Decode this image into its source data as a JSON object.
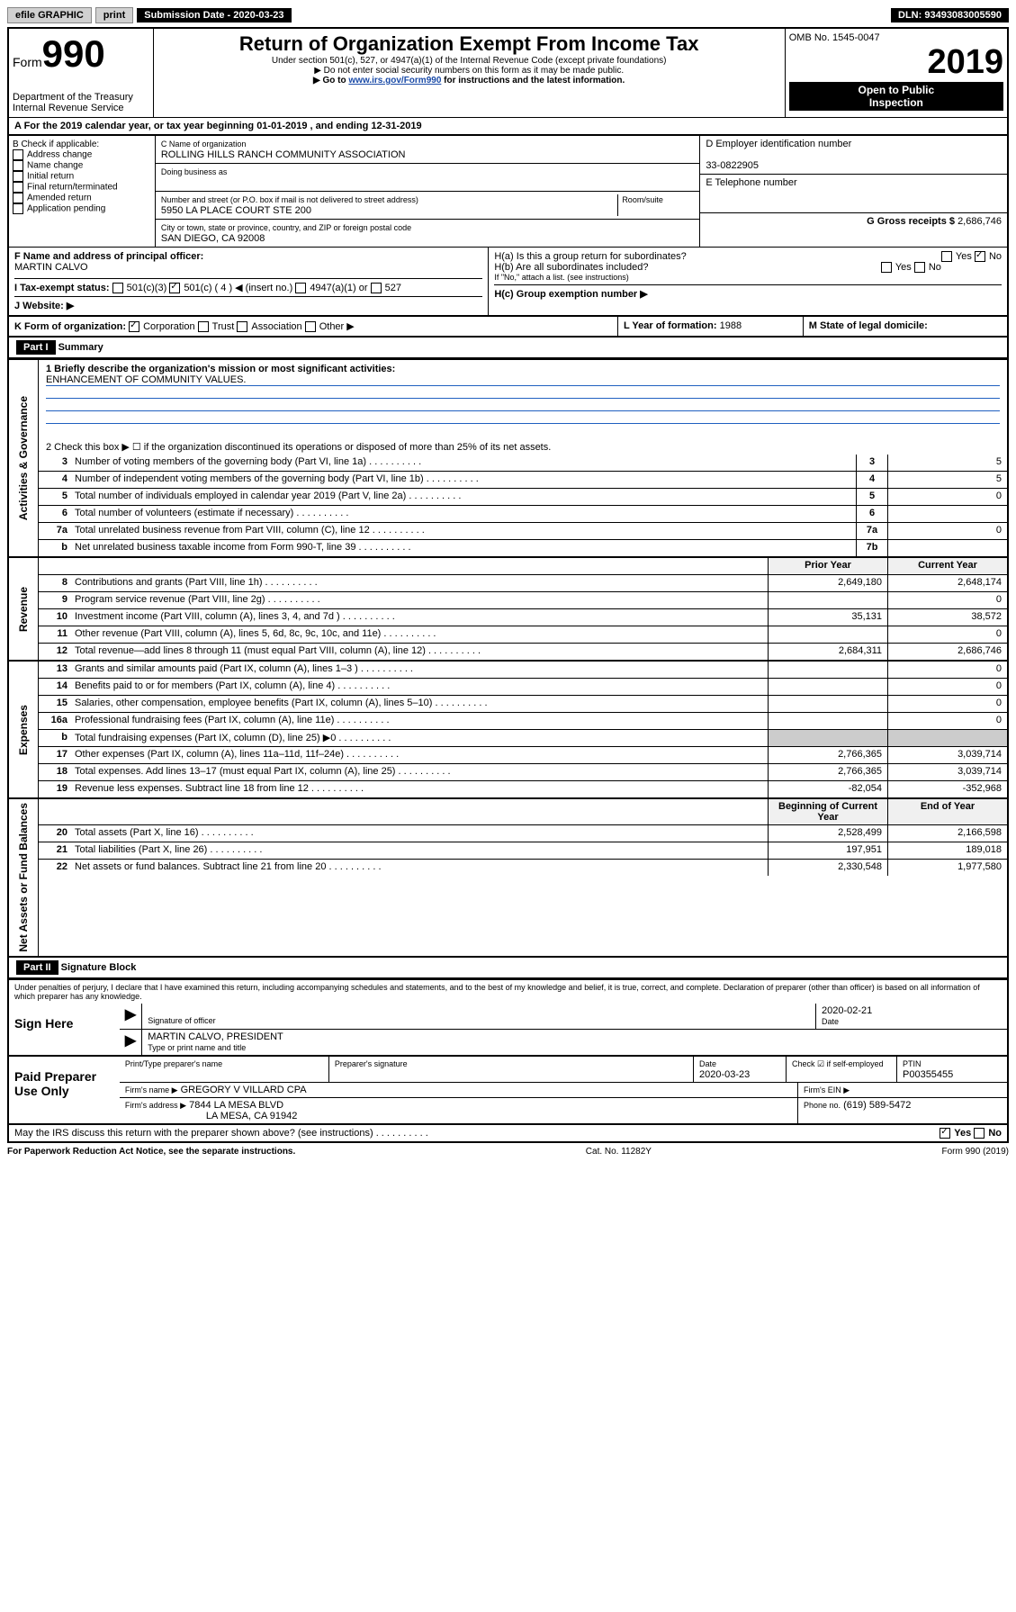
{
  "toolbar": {
    "efile": "efile GRAPHIC",
    "print": "print",
    "sub_label": "Submission Date - 2020-03-23",
    "dln": "DLN: 93493083005590"
  },
  "header": {
    "form_word": "Form",
    "form_no": "990",
    "dept": "Department of the Treasury",
    "irs": "Internal Revenue Service",
    "title": "Return of Organization Exempt From Income Tax",
    "sub1": "Under section 501(c), 527, or 4947(a)(1) of the Internal Revenue Code (except private foundations)",
    "sub2": "▶ Do not enter social security numbers on this form as it may be made public.",
    "sub3_a": "▶ Go to ",
    "sub3_link": "www.irs.gov/Form990",
    "sub3_b": " for instructions and the latest information.",
    "omb": "OMB No. 1545-0047",
    "year": "2019",
    "open": "Open to Public",
    "inspection": "Inspection"
  },
  "section_a": "A For the 2019 calendar year, or tax year beginning 01-01-2019     , and ending 12-31-2019",
  "block_b": {
    "label": "B Check if applicable:",
    "items": [
      "Address change",
      "Name change",
      "Initial return",
      "Final return/terminated",
      "Amended return",
      "Application pending"
    ]
  },
  "block_c": {
    "name_label": "C Name of organization",
    "name": "ROLLING HILLS RANCH COMMUNITY ASSOCIATION",
    "dba_label": "Doing business as",
    "addr_label": "Number and street (or P.O. box if mail is not delivered to street address)",
    "room_label": "Room/suite",
    "addr": "5950 LA PLACE COURT STE 200",
    "city_label": "City or town, state or province, country, and ZIP or foreign postal code",
    "city": "SAN DIEGO, CA  92008"
  },
  "block_d": {
    "label": "D Employer identification number",
    "val": "33-0822905"
  },
  "block_e": {
    "label": "E Telephone number"
  },
  "block_g": {
    "label": "G Gross receipts $",
    "val": "2,686,746"
  },
  "block_f": {
    "label": "F  Name and address of principal officer:",
    "name": "MARTIN CALVO"
  },
  "block_h": {
    "a": "H(a)  Is this a group return for subordinates?",
    "b": "H(b)  Are all subordinates included?",
    "b_note": "If \"No,\" attach a list. (see instructions)",
    "c": "H(c)  Group exemption number ▶",
    "yes": "Yes",
    "no": "No"
  },
  "block_i": {
    "label": "I   Tax-exempt status:",
    "opts": [
      "501(c)(3)",
      "501(c) ( 4 ) ◀ (insert no.)",
      "4947(a)(1) or",
      "527"
    ]
  },
  "block_j": "J   Website: ▶",
  "block_k": {
    "label": "K Form of organization:",
    "opts": [
      "Corporation",
      "Trust",
      "Association",
      "Other ▶"
    ]
  },
  "block_l": {
    "label": "L Year of formation:",
    "val": "1988"
  },
  "block_m": "M State of legal domicile:",
  "part1": {
    "header": "Part I",
    "title": "Summary",
    "l1": "1  Briefly describe the organization's mission or most significant activities:",
    "l1v": "ENHANCEMENT OF COMMUNITY VALUES.",
    "l2": "2   Check this box ▶ ☐  if the organization discontinued its operations or disposed of more than 25% of its net assets.",
    "rows_a": [
      {
        "n": "3",
        "d": "Number of voting members of the governing body (Part VI, line 1a)",
        "b": "3",
        "v": "5"
      },
      {
        "n": "4",
        "d": "Number of independent voting members of the governing body (Part VI, line 1b)",
        "b": "4",
        "v": "5"
      },
      {
        "n": "5",
        "d": "Total number of individuals employed in calendar year 2019 (Part V, line 2a)",
        "b": "5",
        "v": "0"
      },
      {
        "n": "6",
        "d": "Total number of volunteers (estimate if necessary)",
        "b": "6",
        "v": ""
      },
      {
        "n": "7a",
        "d": "Total unrelated business revenue from Part VIII, column (C), line 12",
        "b": "7a",
        "v": "0"
      },
      {
        "n": "b",
        "d": "Net unrelated business taxable income from Form 990-T, line 39",
        "b": "7b",
        "v": ""
      }
    ],
    "col_prior": "Prior Year",
    "col_current": "Current Year",
    "rows_r": [
      {
        "n": "8",
        "d": "Contributions and grants (Part VIII, line 1h)",
        "p": "2,649,180",
        "c": "2,648,174"
      },
      {
        "n": "9",
        "d": "Program service revenue (Part VIII, line 2g)",
        "p": "",
        "c": "0"
      },
      {
        "n": "10",
        "d": "Investment income (Part VIII, column (A), lines 3, 4, and 7d )",
        "p": "35,131",
        "c": "38,572"
      },
      {
        "n": "11",
        "d": "Other revenue (Part VIII, column (A), lines 5, 6d, 8c, 9c, 10c, and 11e)",
        "p": "",
        "c": "0"
      },
      {
        "n": "12",
        "d": "Total revenue—add lines 8 through 11 (must equal Part VIII, column (A), line 12)",
        "p": "2,684,311",
        "c": "2,686,746"
      }
    ],
    "rows_e": [
      {
        "n": "13",
        "d": "Grants and similar amounts paid (Part IX, column (A), lines 1–3 )",
        "p": "",
        "c": "0"
      },
      {
        "n": "14",
        "d": "Benefits paid to or for members (Part IX, column (A), line 4)",
        "p": "",
        "c": "0"
      },
      {
        "n": "15",
        "d": "Salaries, other compensation, employee benefits (Part IX, column (A), lines 5–10)",
        "p": "",
        "c": "0"
      },
      {
        "n": "16a",
        "d": "Professional fundraising fees (Part IX, column (A), line 11e)",
        "p": "",
        "c": "0"
      },
      {
        "n": "b",
        "d": "Total fundraising expenses (Part IX, column (D), line 25) ▶0",
        "p": "—",
        "c": "—"
      },
      {
        "n": "17",
        "d": "Other expenses (Part IX, column (A), lines 11a–11d, 11f–24e)",
        "p": "2,766,365",
        "c": "3,039,714"
      },
      {
        "n": "18",
        "d": "Total expenses. Add lines 13–17 (must equal Part IX, column (A), line 25)",
        "p": "2,766,365",
        "c": "3,039,714"
      },
      {
        "n": "19",
        "d": "Revenue less expenses. Subtract line 18 from line 12",
        "p": "-82,054",
        "c": "-352,968"
      }
    ],
    "col_bcy": "Beginning of Current Year",
    "col_eoy": "End of Year",
    "rows_n": [
      {
        "n": "20",
        "d": "Total assets (Part X, line 16)",
        "p": "2,528,499",
        "c": "2,166,598"
      },
      {
        "n": "21",
        "d": "Total liabilities (Part X, line 26)",
        "p": "197,951",
        "c": "189,018"
      },
      {
        "n": "22",
        "d": "Net assets or fund balances. Subtract line 21 from line 20",
        "p": "2,330,548",
        "c": "1,977,580"
      }
    ],
    "vlabels": {
      "ag": "Activities & Governance",
      "rev": "Revenue",
      "exp": "Expenses",
      "net": "Net Assets or Fund Balances"
    }
  },
  "part2": {
    "header": "Part II",
    "title": "Signature Block",
    "perjury": "Under penalties of perjury, I declare that I have examined this return, including accompanying schedules and statements, and to the best of my knowledge and belief, it is true, correct, and complete. Declaration of preparer (other than officer) is based on all information of which preparer has any knowledge.",
    "sign_here": "Sign Here",
    "sig_officer": "Signature of officer",
    "sig_date": "2020-02-21",
    "date_label": "Date",
    "typed_name": "MARTIN CALVO, PRESIDENT",
    "typed_label": "Type or print name and title",
    "paid": "Paid Preparer Use Only",
    "prep_name_label": "Print/Type preparer's name",
    "prep_sig_label": "Preparer's signature",
    "prep_date_label": "Date",
    "prep_date": "2020-03-23",
    "check_if": "Check ☑ if self-employed",
    "ptin_label": "PTIN",
    "ptin": "P00355455",
    "firm_name_label": "Firm's name    ▶",
    "firm_name": "GREGORY V VILLARD CPA",
    "firm_ein_label": "Firm's EIN ▶",
    "firm_addr_label": "Firm's address ▶",
    "firm_addr": "7844 LA MESA BLVD",
    "firm_city": "LA MESA, CA  91942",
    "phone_label": "Phone no.",
    "phone": "(619) 589-5472",
    "may_irs": "May the IRS discuss this return with the preparer shown above? (see instructions)",
    "yes": "Yes",
    "no": "No"
  },
  "footer": {
    "left": "For Paperwork Reduction Act Notice, see the separate instructions.",
    "mid": "Cat. No. 11282Y",
    "right": "Form 990 (2019)"
  }
}
